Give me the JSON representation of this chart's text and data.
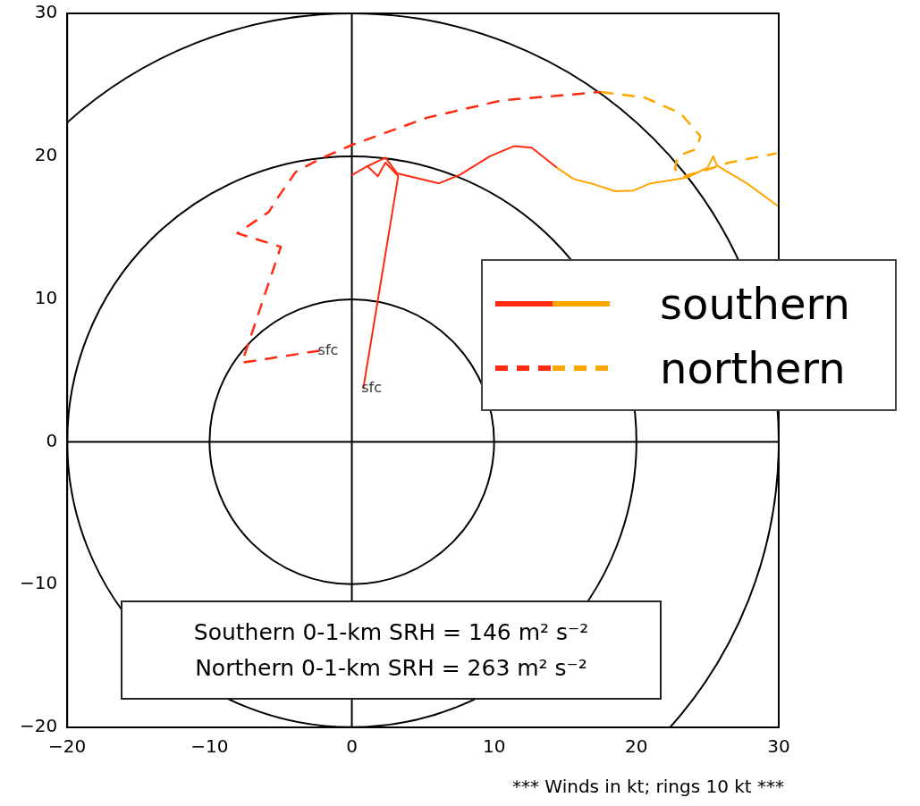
{
  "chart_data": {
    "type": "line",
    "xlim": [
      -20,
      30
    ],
    "ylim": [
      -20,
      30
    ],
    "xticks": [
      -20,
      -10,
      0,
      10,
      20,
      30
    ],
    "yticks": [
      -20,
      -10,
      0,
      10,
      20,
      30
    ],
    "legend": "right",
    "marker": "none",
    "series": [
      {
        "name": "southern",
        "color": "#ff2a10",
        "line_style": "solid",
        "x": [
          0.8,
          3.26,
          2.36,
          1.83,
          1.1,
          0.04,
          1.1,
          2.36,
          3.19,
          6.13,
          7.6,
          9.7,
          11.38,
          12.64,
          14.4
        ],
        "values": [
          3.7,
          18.6,
          19.55,
          18.6,
          19.3,
          18.7,
          19.3,
          19.9,
          18.8,
          18.1,
          18.7,
          20.0,
          20.7,
          20.6,
          19.2
        ]
      },
      {
        "color": "#ffa500",
        "line_style": "solid",
        "x": [
          14.4,
          15.6,
          16.8,
          18.5,
          19.8,
          21.0,
          23.55,
          25.0,
          25.4,
          25.65,
          27.75,
          29.96
        ],
        "values": [
          19.2,
          18.4,
          18.1,
          17.55,
          17.6,
          18.1,
          18.5,
          19.2,
          20.0,
          19.35,
          18.1,
          16.5
        ]
      },
      {
        "name": "northern",
        "color": "#ff2a10",
        "line_style": "dashed",
        "x": [
          -2.26,
          -7.72,
          -4.99,
          -8.04,
          -5.83,
          -5.2,
          -3.94,
          -2.26,
          0.04,
          5.3,
          10.5,
          17.5
        ],
        "values": [
          6.38,
          5.54,
          13.65,
          14.6,
          16.1,
          17.1,
          18.9,
          19.8,
          20.8,
          22.7,
          23.9,
          24.5
        ]
      },
      {
        "color": "#ffa500",
        "line_style": "dashed",
        "x": [
          17.5,
          20.6,
          23.1,
          24.5,
          24.2,
          22.9,
          22.7,
          23.35,
          24.8,
          26.5,
          29.85
        ],
        "values": [
          24.5,
          24.1,
          23.0,
          21.4,
          20.5,
          20.0,
          19.1,
          18.6,
          19.0,
          19.55,
          20.2
        ]
      }
    ],
    "annotations": [
      {
        "text": "sfc",
        "x": 0.8,
        "y": 3.7
      },
      {
        "text": "sfc",
        "x": -2.26,
        "y": 6.38
      },
      "Southern 0-1-km SRH = 146 m² s⁻²",
      "Northern 0-1-km SRH = 263 m² s⁻²",
      "*** Winds in kt; rings 10 kt ***"
    ]
  }
}
